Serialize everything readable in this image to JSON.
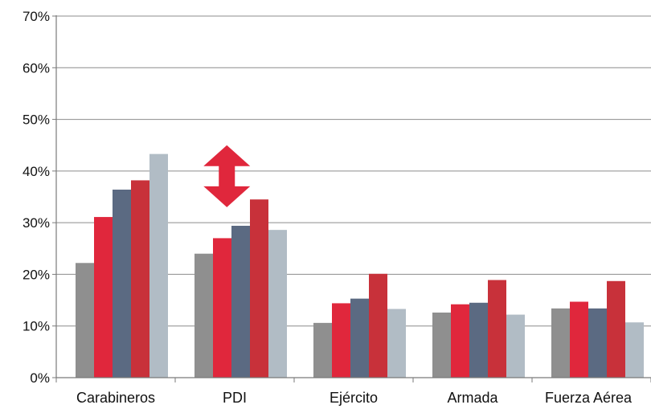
{
  "chart_data": {
    "type": "bar",
    "title": "",
    "xlabel": "",
    "ylabel": "",
    "ylim": [
      0,
      70
    ],
    "y_ticks": [
      "0%",
      "10%",
      "20%",
      "30%",
      "40%",
      "50%",
      "60%",
      "70%"
    ],
    "y_tick_values": [
      0,
      10,
      20,
      30,
      40,
      50,
      60,
      70
    ],
    "grid": true,
    "legend": "none",
    "categories": [
      "Carabineros",
      "PDI",
      "Ejército",
      "Armada",
      "Fuerza Aérea"
    ],
    "series": [
      {
        "color": "#8f8f8f",
        "values": [
          22.2,
          24.0,
          10.6,
          12.6,
          13.4
        ]
      },
      {
        "color": "#e0273c",
        "values": [
          31.1,
          27.0,
          14.4,
          14.2,
          14.7
        ]
      },
      {
        "color": "#5b6a82",
        "values": [
          36.4,
          29.4,
          15.3,
          14.5,
          13.4
        ]
      },
      {
        "color": "#c8313a",
        "values": [
          38.2,
          34.5,
          20.1,
          18.9,
          18.7
        ]
      },
      {
        "color": "#b1bcc5",
        "values": [
          43.3,
          28.6,
          13.3,
          12.2,
          10.7
        ]
      }
    ],
    "annotations": [
      {
        "type": "double-arrow-vertical",
        "category": "PDI",
        "color": "#e0273c",
        "y_top": 45,
        "y_bottom": 33
      }
    ]
  }
}
